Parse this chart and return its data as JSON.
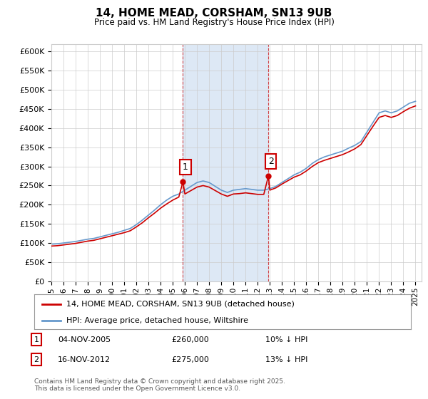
{
  "title": "14, HOME MEAD, CORSHAM, SN13 9UB",
  "subtitle": "Price paid vs. HM Land Registry's House Price Index (HPI)",
  "ylim": [
    0,
    620000
  ],
  "yticks": [
    0,
    50000,
    100000,
    150000,
    200000,
    250000,
    300000,
    350000,
    400000,
    450000,
    500000,
    550000,
    600000
  ],
  "xmin": 1995.0,
  "xmax": 2025.5,
  "xticks": [
    1995,
    1996,
    1997,
    1998,
    1999,
    2000,
    2001,
    2002,
    2003,
    2004,
    2005,
    2006,
    2007,
    2008,
    2009,
    2010,
    2011,
    2012,
    2013,
    2014,
    2015,
    2016,
    2017,
    2018,
    2019,
    2020,
    2021,
    2022,
    2023,
    2024,
    2025
  ],
  "sale1_x": 2005.84,
  "sale1_y": 260000,
  "sale1_label": "1",
  "sale2_x": 2012.88,
  "sale2_y": 275000,
  "sale2_label": "2",
  "shaded_xmin": 2005.84,
  "shaded_xmax": 2012.88,
  "legend_line1": "14, HOME MEAD, CORSHAM, SN13 9UB (detached house)",
  "legend_line2": "HPI: Average price, detached house, Wiltshire",
  "note1_label": "1",
  "note1_date": "04-NOV-2005",
  "note1_price": "£260,000",
  "note1_hpi": "10% ↓ HPI",
  "note2_label": "2",
  "note2_date": "16-NOV-2012",
  "note2_price": "£275,000",
  "note2_hpi": "13% ↓ HPI",
  "copyright": "Contains HM Land Registry data © Crown copyright and database right 2025.\nThis data is licensed under the Open Government Licence v3.0.",
  "red_color": "#cc0000",
  "blue_color": "#6699cc",
  "shaded_color": "#dde8f5",
  "bg_color": "#ffffff",
  "grid_color": "#cccccc",
  "years_hpi": [
    1995,
    1995.5,
    1996,
    1996.5,
    1997,
    1997.5,
    1998,
    1998.5,
    1999,
    1999.5,
    2000,
    2000.5,
    2001,
    2001.5,
    2002,
    2002.5,
    2003,
    2003.5,
    2004,
    2004.5,
    2005,
    2005.5,
    2006,
    2006.5,
    2007,
    2007.5,
    2008,
    2008.5,
    2009,
    2009.5,
    2010,
    2010.5,
    2011,
    2011.5,
    2012,
    2012.5,
    2013,
    2013.5,
    2014,
    2014.5,
    2015,
    2015.5,
    2016,
    2016.5,
    2017,
    2017.5,
    2018,
    2018.5,
    2019,
    2019.5,
    2020,
    2020.5,
    2021,
    2021.5,
    2022,
    2022.5,
    2023,
    2023.5,
    2024,
    2024.5,
    2025
  ],
  "hpi_values": [
    97000,
    98000,
    100000,
    102000,
    104000,
    107000,
    110000,
    112000,
    116000,
    120000,
    124000,
    128000,
    133000,
    138000,
    148000,
    160000,
    173000,
    186000,
    200000,
    212000,
    222000,
    228000,
    238000,
    248000,
    258000,
    262000,
    258000,
    248000,
    238000,
    232000,
    238000,
    240000,
    242000,
    240000,
    238000,
    238000,
    242000,
    248000,
    258000,
    268000,
    278000,
    285000,
    295000,
    308000,
    318000,
    325000,
    330000,
    335000,
    340000,
    348000,
    355000,
    365000,
    390000,
    415000,
    440000,
    445000,
    440000,
    445000,
    455000,
    465000,
    470000
  ],
  "years_red": [
    1995,
    1995.5,
    1996,
    1996.5,
    1997,
    1997.5,
    1998,
    1998.5,
    1999,
    1999.5,
    2000,
    2000.5,
    2001,
    2001.5,
    2002,
    2002.5,
    2003,
    2003.5,
    2004,
    2004.5,
    2005,
    2005.5,
    2005.84,
    2006,
    2006.5,
    2007,
    2007.5,
    2008,
    2008.5,
    2009,
    2009.5,
    2010,
    2010.5,
    2011,
    2011.5,
    2012,
    2012.5,
    2012.88,
    2013,
    2013.5,
    2014,
    2014.5,
    2015,
    2015.5,
    2016,
    2016.5,
    2017,
    2017.5,
    2018,
    2018.5,
    2019,
    2019.5,
    2020,
    2020.5,
    2021,
    2021.5,
    2022,
    2022.5,
    2023,
    2023.5,
    2024,
    2024.5,
    2025
  ],
  "red_values": [
    92000,
    93000,
    95000,
    97000,
    99000,
    102000,
    105000,
    107000,
    111000,
    115000,
    119000,
    123000,
    127000,
    132000,
    142000,
    153000,
    166000,
    178000,
    191000,
    202000,
    212000,
    220000,
    260000,
    228000,
    237000,
    246000,
    250000,
    246000,
    237000,
    228000,
    222000,
    228000,
    229000,
    231000,
    229000,
    227000,
    227000,
    275000,
    238000,
    244000,
    254000,
    263000,
    272000,
    278000,
    288000,
    300000,
    310000,
    316000,
    321000,
    326000,
    331000,
    338000,
    346000,
    357000,
    381000,
    405000,
    428000,
    433000,
    428000,
    433000,
    443000,
    452000,
    458000
  ]
}
